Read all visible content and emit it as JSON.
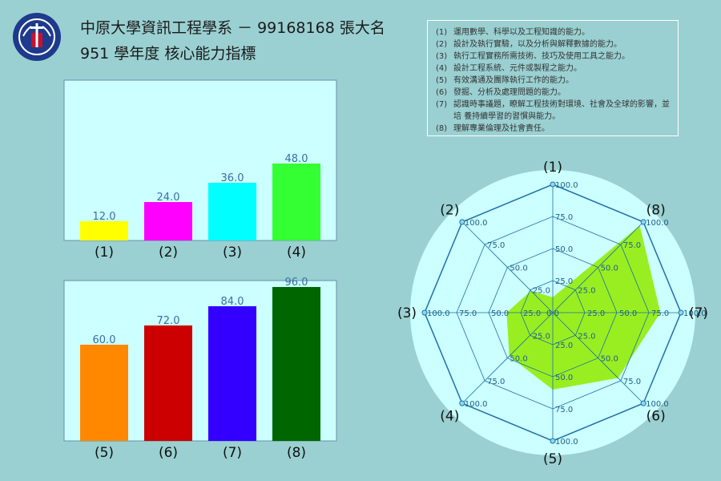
{
  "header": {
    "title_line1": "中原大學資訊工程學系 － 99168168 張大名",
    "title_line2": "951 學年度 核心能力指標"
  },
  "legend": [
    {
      "num": "(1)",
      "text": "運用數學、科學以及工程知識的能力。"
    },
    {
      "num": "(2)",
      "text": "設計及執行實驗，以及分析與解釋數據的能力。"
    },
    {
      "num": "(3)",
      "text": "執行工程實務所需技術、技巧及使用工具之能力。"
    },
    {
      "num": "(4)",
      "text": "設計工程系統、元件或製程之能力。"
    },
    {
      "num": "(5)",
      "text": "有效溝通及團隊執行工作的能力。"
    },
    {
      "num": "(6)",
      "text": "發掘、分析及處理問題的能力。"
    },
    {
      "num": "(7)",
      "text": "認識時事議題，瞭解工程技術對環境、社會及全球的影響，並培 養持續學習的習慣與能力。"
    },
    {
      "num": "(8)",
      "text": "理解專業倫理及社會責任。"
    }
  ],
  "colors": {
    "background": "#9ad0d2",
    "plot_area": "#ccffff",
    "radar_fill": "#99ee22",
    "radar_line": "#1d6fa5"
  },
  "chart_data": [
    {
      "type": "bar",
      "categories": [
        "(1)",
        "(2)",
        "(3)",
        "(4)"
      ],
      "values": [
        12.0,
        24.0,
        36.0,
        48.0
      ],
      "value_labels": [
        "12.0",
        "24.0",
        "36.0",
        "48.0"
      ],
      "colors": [
        "#ffff00",
        "#ff00ff",
        "#00ffff",
        "#33ff33"
      ],
      "ylim": [
        0,
        100
      ],
      "grid": false
    },
    {
      "type": "bar",
      "categories": [
        "(5)",
        "(6)",
        "(7)",
        "(8)"
      ],
      "values": [
        60.0,
        72.0,
        84.0,
        96.0
      ],
      "value_labels": [
        "60.0",
        "72.0",
        "84.0",
        "96.0"
      ],
      "colors": [
        "#ff8800",
        "#cc0000",
        "#3300ff",
        "#006600"
      ],
      "ylim": [
        0,
        100
      ],
      "grid": false
    },
    {
      "type": "radar",
      "axes": [
        "(1)",
        "(8)",
        "(7)",
        "(6)",
        "(5)",
        "(4)",
        "(3)",
        "(2)"
      ],
      "values": [
        12.0,
        96.0,
        84.0,
        72.0,
        60.0,
        48.0,
        36.0,
        24.0
      ],
      "rlim": [
        0,
        100
      ],
      "ring_labels": [
        "25.0",
        "50.0",
        "75.0",
        "100.0"
      ],
      "center_label": "0.0"
    }
  ]
}
